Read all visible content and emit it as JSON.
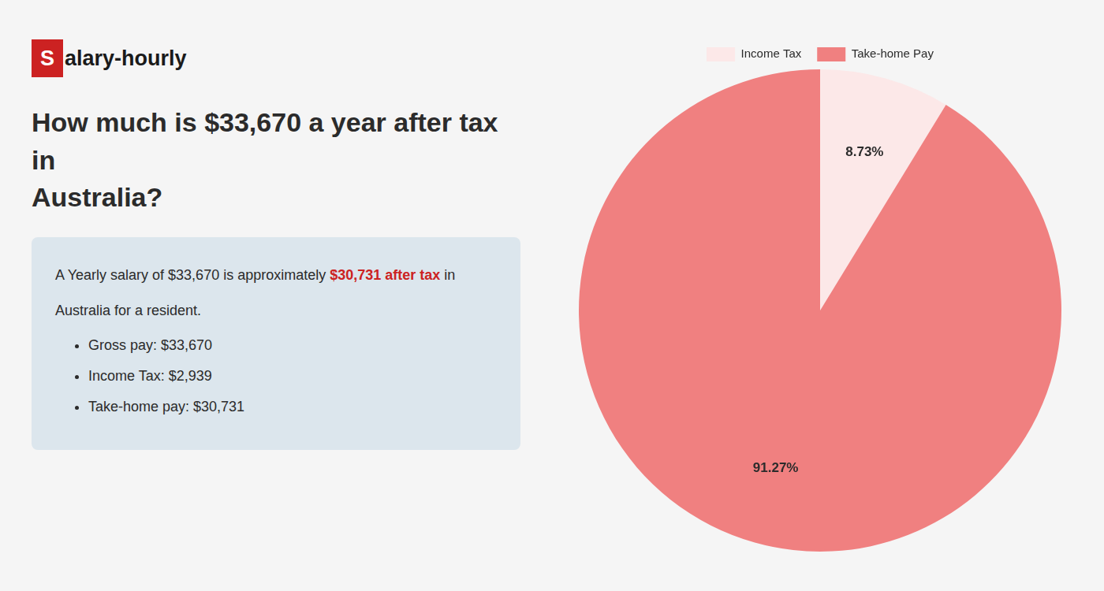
{
  "chart_data": {
    "type": "pie",
    "title": "How much is $33,670 a year after tax in\nAustralia?",
    "categories": [
      "Income Tax",
      "Take-home Pay"
    ],
    "values": [
      8.73,
      91.27
    ],
    "value_labels": [
      "8.73%",
      "91.27%"
    ],
    "colors": [
      "#fce8e8",
      "#f08080"
    ],
    "data_labels": true,
    "legend": "top",
    "annotations": [
      {
        "text": "S",
        "color": "#cc2222"
      },
      {
        "text": "alary-hourly"
      },
      {
        "text": "A Yearly salary of $33,670 is approximately "
      },
      {
        "text": "$30,731 after tax",
        "color": "#cc2222"
      },
      {
        "text": " in"
      },
      {
        "text": "Australia for a resident."
      },
      {
        "text": "Gross pay: $33,670"
      },
      {
        "text": "Income Tax: $2,939"
      },
      {
        "text": "Take-home pay: $30,731"
      }
    ]
  }
}
